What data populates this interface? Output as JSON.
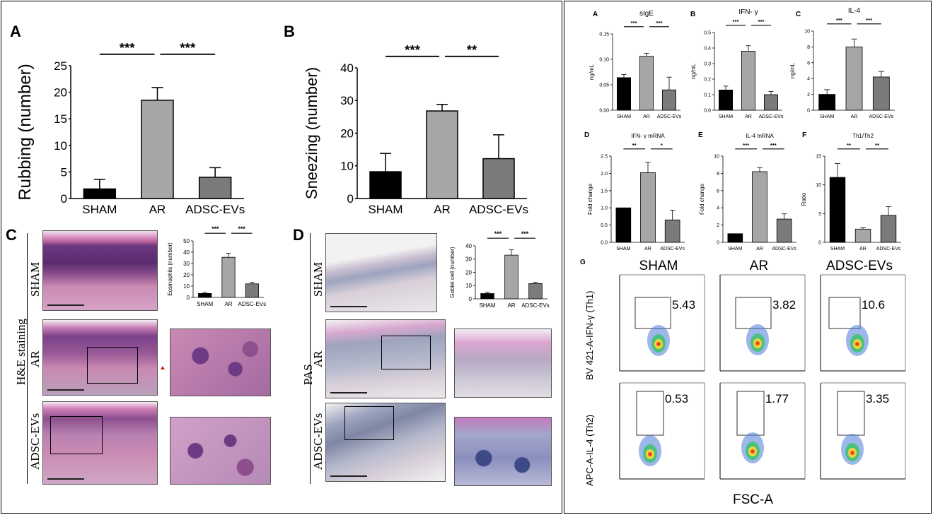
{
  "panel_labels": {
    "A": "A",
    "B": "B",
    "C": "C",
    "D": "D",
    "G": "G",
    "rA": "A",
    "rB": "B",
    "rC": "C",
    "rD": "D",
    "rE": "E",
    "rF": "F"
  },
  "histology": {
    "he_staining_label": "H&E staining",
    "pas_label": "PAS",
    "row_labels": [
      "SHAM",
      "AR",
      "ADSC-EVs"
    ],
    "colors": {
      "he_tissue": "#c98ab2",
      "he_nuclei": "#5b2a6e",
      "pas_tissue": "#d8cfd9",
      "pas_nuclei": "#7f86a4",
      "arrow": "#e01010"
    }
  },
  "flow": {
    "column_titles": [
      "SHAM",
      "AR",
      "ADSC-EVs"
    ],
    "row_labels": [
      "BV 421-A-IFN-γ (Th1)",
      "APC-A-IL-4 (Th2)"
    ],
    "x_label": "FSC-A",
    "gate_values": [
      [
        "5.43",
        "3.82",
        "10.6"
      ],
      [
        "0.53",
        "1.77",
        "3.35"
      ]
    ]
  },
  "chart_data": [
    {
      "id": "rubbing",
      "type": "bar",
      "categories": [
        "SHAM",
        "AR",
        "ADSC-EVs"
      ],
      "values": [
        1.8,
        18.5,
        4.0
      ],
      "errors": [
        1.8,
        2.4,
        1.8
      ],
      "ylabel": "Rubbing (number)",
      "ylim": [
        0,
        25
      ],
      "yticks": [
        0,
        5,
        10,
        15,
        20,
        25
      ],
      "colors": [
        "#000000",
        "#a6a6a6",
        "#7b7b7b"
      ],
      "significance": [
        {
          "from": 0,
          "to": 1,
          "text": "***"
        },
        {
          "from": 1,
          "to": 2,
          "text": "***"
        }
      ]
    },
    {
      "id": "sneezing",
      "type": "bar",
      "categories": [
        "SHAM",
        "AR",
        "ADSC-EVs"
      ],
      "values": [
        8.2,
        26.8,
        12.2
      ],
      "errors": [
        5.6,
        2.0,
        7.3
      ],
      "ylabel": "Sneezing (number)",
      "ylim": [
        0,
        40
      ],
      "yticks": [
        0,
        10,
        20,
        30,
        40
      ],
      "colors": [
        "#000000",
        "#a6a6a6",
        "#7b7b7b"
      ],
      "significance": [
        {
          "from": 0,
          "to": 1,
          "text": "***"
        },
        {
          "from": 1,
          "to": 2,
          "text": "**"
        }
      ]
    },
    {
      "id": "eosinophils",
      "type": "bar",
      "categories": [
        "SHAM",
        "AR",
        "ADSC-EVs"
      ],
      "values": [
        3.5,
        35.5,
        12.0
      ],
      "errors": [
        1.0,
        3.5,
        1.5
      ],
      "ylabel": "Eosinophils (number)",
      "ylim": [
        0,
        50
      ],
      "yticks": [
        0,
        10,
        20,
        30,
        40,
        50
      ],
      "colors": [
        "#000000",
        "#a6a6a6",
        "#7b7b7b"
      ],
      "significance": [
        {
          "from": 0,
          "to": 1,
          "text": "***"
        },
        {
          "from": 1,
          "to": 2,
          "text": "***"
        }
      ]
    },
    {
      "id": "goblet",
      "type": "bar",
      "categories": [
        "SHAM",
        "AR",
        "ADSC-EVs"
      ],
      "values": [
        4.0,
        33.0,
        11.5
      ],
      "errors": [
        1.0,
        4.0,
        1.0
      ],
      "ylabel": "Goblet cell (number)",
      "ylim": [
        0,
        40
      ],
      "yticks": [
        0,
        10,
        20,
        30,
        40
      ],
      "colors": [
        "#000000",
        "#a6a6a6",
        "#7b7b7b"
      ],
      "significance": [
        {
          "from": 0,
          "to": 1,
          "text": "***"
        },
        {
          "from": 1,
          "to": 2,
          "text": "***"
        }
      ]
    },
    {
      "id": "sige",
      "type": "bar",
      "title": "sIgE",
      "categories": [
        "SHAM",
        "AR",
        "ADSC-EVs"
      ],
      "values": [
        0.064,
        0.106,
        0.04
      ],
      "errors": [
        0.006,
        0.006,
        0.025
      ],
      "ylabel": "ng/mL",
      "ylim": [
        0,
        0.15
      ],
      "yticks": [
        0.0,
        0.05,
        0.1,
        0.15
      ],
      "ytick_labels": [
        "0.00",
        "0.05",
        "0.10",
        "0.15"
      ],
      "colors": [
        "#000000",
        "#a6a6a6",
        "#7b7b7b"
      ],
      "significance": [
        {
          "from": 0,
          "to": 1,
          "text": "***"
        },
        {
          "from": 1,
          "to": 2,
          "text": "***"
        }
      ]
    },
    {
      "id": "ifng",
      "type": "bar",
      "title": "IFN- γ",
      "categories": [
        "SHAM",
        "AR",
        "ADSC-EVs"
      ],
      "values": [
        0.13,
        0.38,
        0.1
      ],
      "errors": [
        0.025,
        0.035,
        0.02
      ],
      "ylabel": "ng/mL",
      "ylim": [
        0,
        0.5
      ],
      "yticks": [
        0.0,
        0.1,
        0.2,
        0.3,
        0.4,
        0.5
      ],
      "ytick_labels": [
        "0.0",
        "0.1",
        "0.2",
        "0.3",
        "0.4",
        "0.5"
      ],
      "colors": [
        "#000000",
        "#a6a6a6",
        "#7b7b7b"
      ],
      "significance": [
        {
          "from": 0,
          "to": 1,
          "text": "***"
        },
        {
          "from": 1,
          "to": 2,
          "text": "***"
        }
      ]
    },
    {
      "id": "il4",
      "type": "bar",
      "title": "IL-4",
      "categories": [
        "SHAM",
        "AR",
        "ADSC-EVs"
      ],
      "values": [
        2.0,
        8.0,
        4.2
      ],
      "errors": [
        0.6,
        1.0,
        0.7
      ],
      "ylabel": "ng/mL",
      "ylim": [
        0,
        10
      ],
      "yticks": [
        0,
        2,
        4,
        6,
        8,
        10
      ],
      "colors": [
        "#000000",
        "#a6a6a6",
        "#7b7b7b"
      ],
      "significance": [
        {
          "from": 0,
          "to": 1,
          "text": "***"
        },
        {
          "from": 1,
          "to": 2,
          "text": "***"
        }
      ]
    },
    {
      "id": "ifng_mrna",
      "type": "bar",
      "title": "IFN- γ mRNA",
      "categories": [
        "SHAM",
        "AR",
        "ADSC-EVs"
      ],
      "values": [
        1.0,
        2.02,
        0.65
      ],
      "errors": [
        0.0,
        0.3,
        0.28
      ],
      "ylabel": "Fold change",
      "ylim": [
        0,
        2.5
      ],
      "yticks": [
        0.0,
        0.5,
        1.0,
        1.5,
        2.0,
        2.5
      ],
      "ytick_labels": [
        "0.0",
        "0.5",
        "1.0",
        "1.5",
        "2.0",
        "2.5"
      ],
      "colors": [
        "#000000",
        "#a6a6a6",
        "#7b7b7b"
      ],
      "significance": [
        {
          "from": 0,
          "to": 1,
          "text": "**"
        },
        {
          "from": 1,
          "to": 2,
          "text": "*"
        }
      ]
    },
    {
      "id": "il4_mrna",
      "type": "bar",
      "title": "IL-4 mRNA",
      "categories": [
        "SHAM",
        "AR",
        "ADSC-EVs"
      ],
      "values": [
        1.0,
        8.2,
        2.7
      ],
      "errors": [
        0.0,
        0.45,
        0.6
      ],
      "ylabel": "Fold change",
      "ylim": [
        0,
        10
      ],
      "yticks": [
        0,
        2,
        4,
        6,
        8,
        10
      ],
      "colors": [
        "#000000",
        "#a6a6a6",
        "#7b7b7b"
      ],
      "significance": [
        {
          "from": 0,
          "to": 1,
          "text": "***"
        },
        {
          "from": 1,
          "to": 2,
          "text": "***"
        }
      ]
    },
    {
      "id": "th1th2",
      "type": "bar",
      "title": "Th1/Th2",
      "categories": [
        "SHAM",
        "AR",
        "ADSC-EVs"
      ],
      "values": [
        11.3,
        2.3,
        4.7
      ],
      "errors": [
        2.4,
        0.25,
        1.5
      ],
      "ylabel": "Ratio",
      "ylim": [
        0,
        15
      ],
      "yticks": [
        0,
        5,
        10,
        15
      ],
      "colors": [
        "#000000",
        "#a6a6a6",
        "#7b7b7b"
      ],
      "significance": [
        {
          "from": 0,
          "to": 1,
          "text": "**"
        },
        {
          "from": 1,
          "to": 2,
          "text": "**"
        }
      ]
    }
  ]
}
